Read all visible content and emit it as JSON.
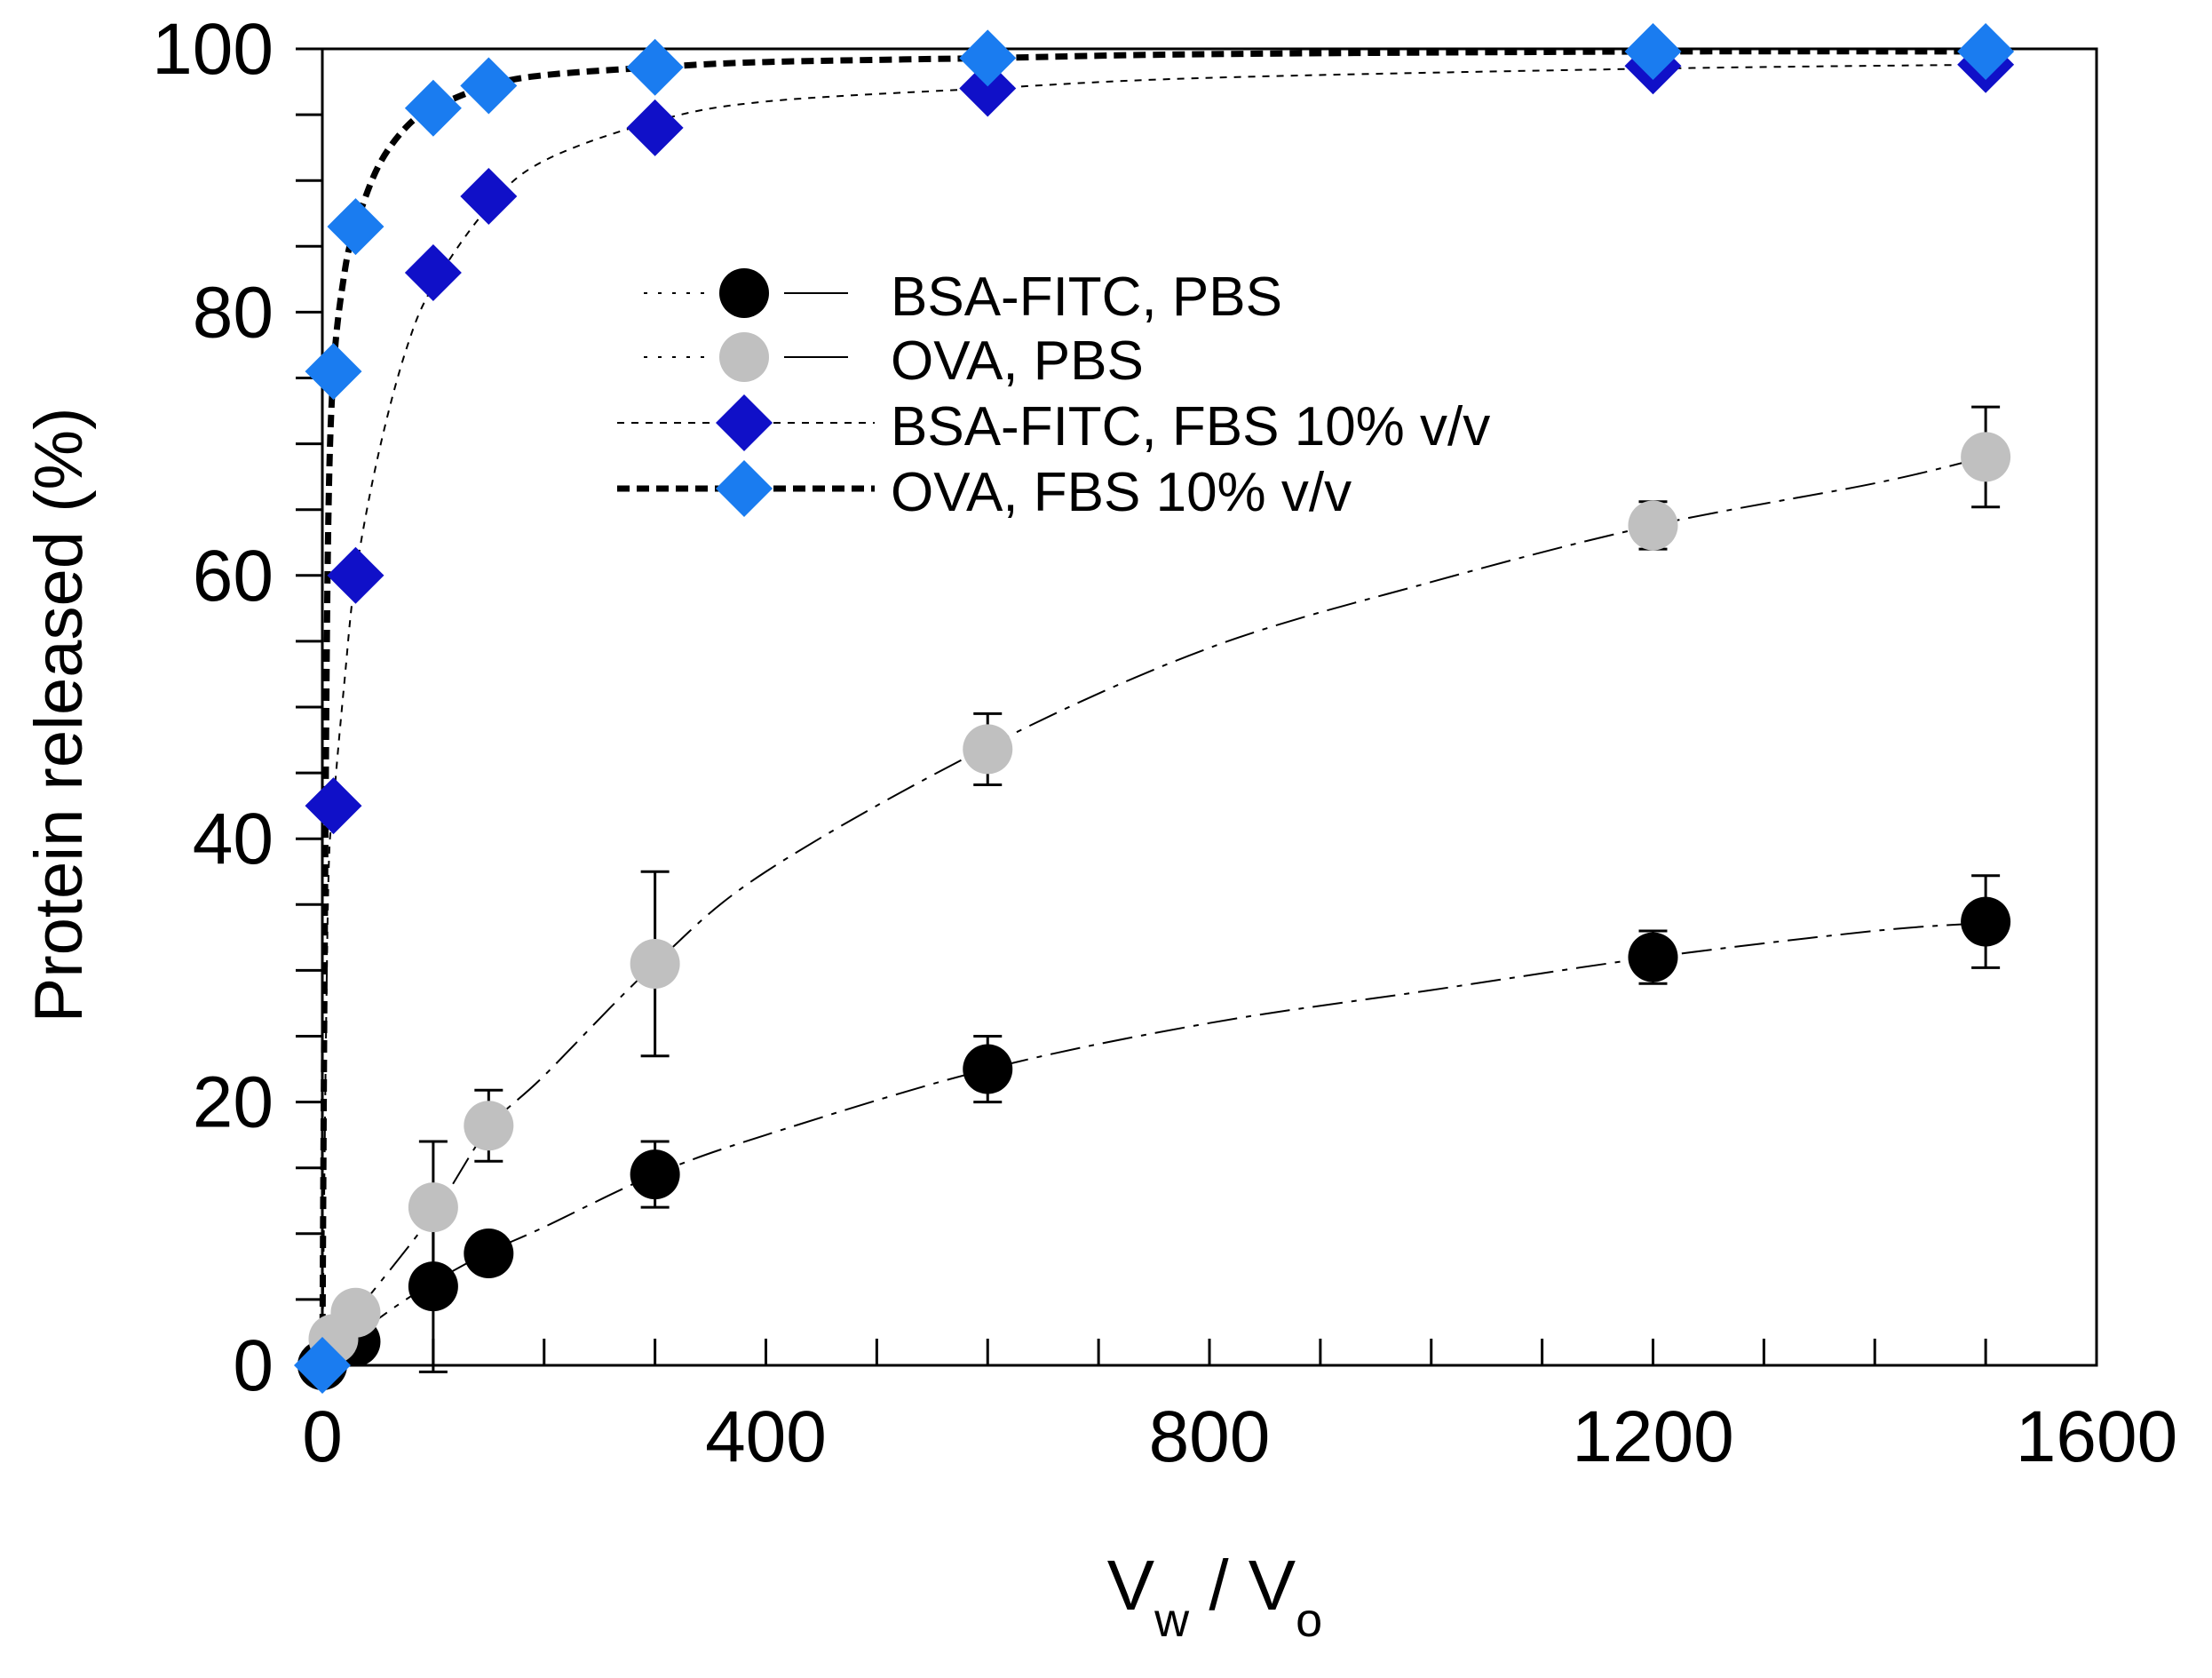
{
  "chart_data": {
    "type": "scatter",
    "title": "",
    "xlabel": {
      "main": "V",
      "sub1": "w",
      "sep": " / V",
      "sub2": "o"
    },
    "ylabel": "Protein released (%)",
    "xlim": [
      0,
      1600
    ],
    "ylim": [
      0,
      100
    ],
    "x_ticks": [
      0,
      400,
      800,
      1200,
      1600
    ],
    "y_ticks": [
      0,
      20,
      40,
      60,
      80,
      100
    ],
    "x_minor_step": 100,
    "y_minor_step": 5,
    "grid": false,
    "legend_position": "upper-middle",
    "series": [
      {
        "name": "BSA-FITC, PBS",
        "marker": "circle",
        "color": "#000000",
        "line_style": "dash-dot",
        "x": [
          0,
          30,
          100,
          150,
          300,
          600,
          1200,
          1500
        ],
        "y": [
          0,
          1.8,
          6.0,
          8.5,
          14.5,
          22.5,
          31.0,
          33.7
        ],
        "err": [
          0,
          0,
          6.5,
          0,
          2.5,
          2.5,
          2.0,
          3.5
        ]
      },
      {
        "name": "OVA, PBS",
        "marker": "circle",
        "color": "#c0c0c0",
        "line_style": "dash-dot",
        "x": [
          10,
          30,
          100,
          150,
          300,
          600,
          1200,
          1500
        ],
        "y": [
          2.0,
          4.0,
          12.0,
          18.2,
          30.5,
          46.8,
          63.8,
          69.0
        ],
        "err": [
          0,
          0,
          5.0,
          2.7,
          7.0,
          2.7,
          1.8,
          3.8
        ]
      },
      {
        "name": "BSA-FITC, FBS 10% v/v",
        "marker": "diamond",
        "color": "#1010c8",
        "line_style": "dotted",
        "x": [
          10,
          30,
          100,
          150,
          300,
          600,
          1200,
          1500
        ],
        "y": [
          42.5,
          60.0,
          83.0,
          88.8,
          94.0,
          97.0,
          98.7,
          98.8
        ],
        "err": [
          0,
          0,
          0,
          0,
          0,
          0,
          0,
          0
        ]
      },
      {
        "name": "OVA, FBS 10% v/v",
        "marker": "diamond",
        "color": "#1a7cf0",
        "line_style": "bold-dashed",
        "x": [
          0,
          10,
          30,
          100,
          150,
          300,
          600,
          1200,
          1500
        ],
        "y": [
          0,
          75.5,
          86.5,
          95.5,
          97.2,
          98.6,
          99.3,
          99.8,
          99.8
        ],
        "err": [
          0,
          0,
          0,
          0,
          0,
          0,
          0,
          0,
          0
        ]
      }
    ],
    "fit_curves": [
      {
        "series": "BSA-FITC, PBS",
        "style": "dash-dot",
        "x": [
          0,
          50,
          100,
          150,
          200,
          300,
          400,
          600,
          800,
          1000,
          1200,
          1400,
          1500
        ],
        "y": [
          0,
          3.5,
          6.3,
          8.6,
          10.5,
          14.5,
          17.5,
          22.5,
          26.0,
          28.5,
          31.0,
          33.0,
          33.6
        ]
      },
      {
        "series": "OVA, PBS",
        "style": "dash-dot",
        "x": [
          0,
          30,
          100,
          150,
          200,
          300,
          400,
          600,
          800,
          1000,
          1200,
          1400,
          1500
        ],
        "y": [
          1.0,
          4.0,
          11.5,
          18.0,
          22.0,
          30.5,
          37.5,
          47.0,
          54.5,
          59.5,
          63.8,
          67.0,
          69.0
        ]
      },
      {
        "series": "BSA-FITC, FBS 10% v/v",
        "style": "dotted",
        "x": [
          0,
          5,
          10,
          20,
          30,
          50,
          75,
          100,
          150,
          200,
          300,
          400,
          600,
          800,
          1200,
          1500
        ],
        "y": [
          0,
          35,
          42.5,
          52,
          60,
          69,
          77,
          82,
          88,
          91.5,
          94.5,
          96,
          97,
          97.8,
          98.5,
          98.8
        ]
      },
      {
        "series": "OVA, FBS 10% v/v",
        "style": "bold-dashed",
        "x": [
          0,
          2,
          5,
          10,
          20,
          30,
          50,
          75,
          100,
          150,
          200,
          300,
          400,
          600,
          800,
          1200,
          1500
        ],
        "y": [
          0,
          30,
          62,
          75.5,
          83,
          86.5,
          91,
          94,
          95.5,
          97.2,
          98,
          98.6,
          99,
          99.3,
          99.6,
          99.8,
          99.8
        ]
      }
    ]
  }
}
